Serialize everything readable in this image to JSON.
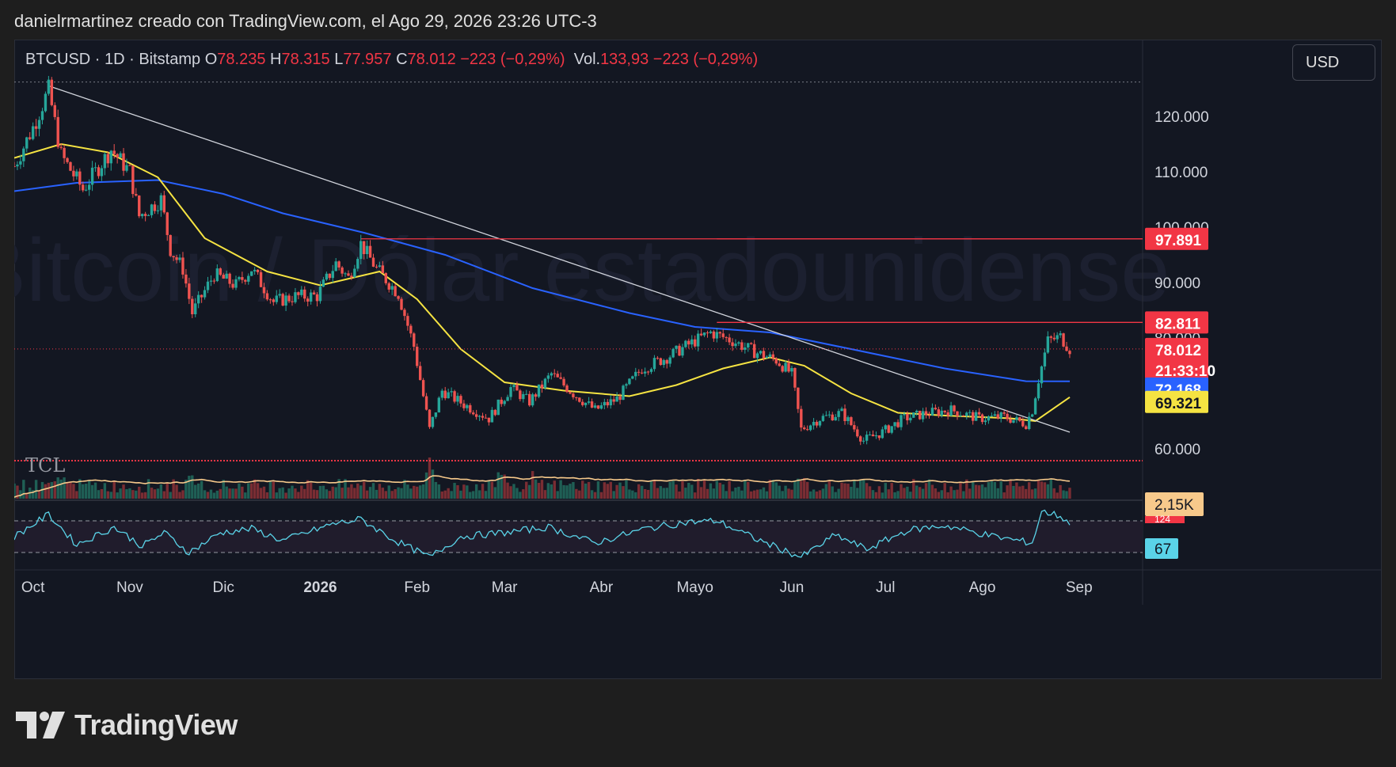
{
  "header": {
    "author_line": "danielrmartinez creado con TradingView.com, el Ago 29, 2026 23:26 UTC-3"
  },
  "legend": {
    "symbol": "BTCUSD · 1D · Bitstamp",
    "open_label": "O",
    "open": "78.235",
    "high_label": "H",
    "high": "78.315",
    "low_label": "L",
    "low": "77.957",
    "close_label": "C",
    "close": "78.012",
    "change": "−223 (−0,29%)",
    "vol_label": "Vol.",
    "vol": "133,93",
    "vol_change": "−223 (−0,29%)"
  },
  "currency_button": "USD",
  "watermark": "Bitcoin / Dólar estadounidense",
  "tcl_logo": "TCL",
  "brand": "TradingView",
  "colors": {
    "up": "#26a69a",
    "down": "#ef5350",
    "sma_short": "#f5e342",
    "sma_long": "#2962ff",
    "resistance": "#f23645",
    "rsi": "#5ad3e8",
    "volume_ma": "#f7c98b"
  },
  "chart_data": {
    "type": "candlestick",
    "x_labels": [
      "Oct",
      "Nov",
      "Dic",
      "2026",
      "Feb",
      "Mar",
      "Abr",
      "Mayo",
      "Jun",
      "Jul",
      "Ago",
      "Sep"
    ],
    "y_ticks": [
      60000,
      70000,
      80000,
      90000,
      100000,
      110000,
      120000
    ],
    "y_tick_labels": [
      "60.000",
      "70.000",
      "80.000",
      "90.000",
      "100.000",
      "110.000",
      "120.000"
    ],
    "ylim": [
      56000,
      128000
    ],
    "close_path": [
      [
        "2025-09-25",
        111000
      ],
      [
        "2025-10-01",
        118000
      ],
      [
        "2025-10-06",
        124800
      ],
      [
        "2025-10-10",
        113000
      ],
      [
        "2025-10-17",
        106800
      ],
      [
        "2025-10-26",
        114000
      ],
      [
        "2025-11-01",
        110000
      ],
      [
        "2025-11-04",
        102000
      ],
      [
        "2025-11-11",
        105000
      ],
      [
        "2025-11-14",
        96000
      ],
      [
        "2025-11-18",
        92500
      ],
      [
        "2025-11-21",
        84500
      ],
      [
        "2025-11-28",
        91500
      ],
      [
        "2025-12-05",
        89500
      ],
      [
        "2025-12-10",
        92500
      ],
      [
        "2025-12-17",
        86500
      ],
      [
        "2025-12-24",
        87500
      ],
      [
        "2025-12-31",
        87600
      ],
      [
        "2026-01-06",
        93500
      ],
      [
        "2026-01-10",
        90800
      ],
      [
        "2026-01-14",
        97000
      ],
      [
        "2026-01-19",
        92500
      ],
      [
        "2026-01-26",
        88000
      ],
      [
        "2026-01-31",
        78500
      ],
      [
        "2026-02-05",
        63500
      ],
      [
        "2026-02-09",
        70500
      ],
      [
        "2026-02-16",
        68000
      ],
      [
        "2026-02-24",
        65500
      ],
      [
        "2026-03-03",
        71000
      ],
      [
        "2026-03-09",
        68500
      ],
      [
        "2026-03-16",
        73500
      ],
      [
        "2026-03-23",
        70000
      ],
      [
        "2026-03-30",
        67000
      ],
      [
        "2026-04-06",
        69000
      ],
      [
        "2026-04-14",
        74500
      ],
      [
        "2026-04-22",
        76500
      ],
      [
        "2026-04-28",
        78500
      ],
      [
        "2026-05-06",
        81000
      ],
      [
        "2026-05-13",
        79500
      ],
      [
        "2026-05-20",
        77500
      ],
      [
        "2026-05-27",
        76000
      ],
      [
        "2026-06-01",
        73500
      ],
      [
        "2026-06-04",
        63500
      ],
      [
        "2026-06-10",
        65500
      ],
      [
        "2026-06-17",
        66500
      ],
      [
        "2026-06-24",
        61500
      ],
      [
        "2026-06-30",
        63000
      ],
      [
        "2026-07-07",
        65500
      ],
      [
        "2026-07-15",
        66500
      ],
      [
        "2026-07-22",
        67000
      ],
      [
        "2026-07-31",
        65500
      ],
      [
        "2026-08-08",
        65800
      ],
      [
        "2026-08-15",
        64500
      ],
      [
        "2026-08-17",
        67000
      ],
      [
        "2026-08-19",
        72500
      ],
      [
        "2026-08-22",
        79500
      ],
      [
        "2026-08-26",
        80200
      ],
      [
        "2026-08-29",
        78012
      ]
    ],
    "sma_short": [
      [
        "2025-09-25",
        112500
      ],
      [
        "2025-10-10",
        115000
      ],
      [
        "2025-10-25",
        113500
      ],
      [
        "2025-11-10",
        109000
      ],
      [
        "2025-11-25",
        98000
      ],
      [
        "2025-12-15",
        92000
      ],
      [
        "2026-01-01",
        89500
      ],
      [
        "2026-01-20",
        92000
      ],
      [
        "2026-02-01",
        87000
      ],
      [
        "2026-02-15",
        78000
      ],
      [
        "2026-03-01",
        72000
      ],
      [
        "2026-03-20",
        70500
      ],
      [
        "2026-04-10",
        69500
      ],
      [
        "2026-04-25",
        71500
      ],
      [
        "2026-05-10",
        74500
      ],
      [
        "2026-05-25",
        76500
      ],
      [
        "2026-06-05",
        75000
      ],
      [
        "2026-06-20",
        70000
      ],
      [
        "2026-07-05",
        66500
      ],
      [
        "2026-07-20",
        66000
      ],
      [
        "2026-08-10",
        65500
      ],
      [
        "2026-08-18",
        65000
      ],
      [
        "2026-08-29",
        69321
      ]
    ],
    "sma_long": [
      [
        "2025-09-25",
        106500
      ],
      [
        "2025-10-15",
        108000
      ],
      [
        "2025-11-10",
        108500
      ],
      [
        "2025-12-01",
        106000
      ],
      [
        "2025-12-20",
        102500
      ],
      [
        "2026-01-15",
        99000
      ],
      [
        "2026-02-10",
        95000
      ],
      [
        "2026-03-10",
        89000
      ],
      [
        "2026-04-10",
        84500
      ],
      [
        "2026-05-01",
        82000
      ],
      [
        "2026-05-25",
        81000
      ],
      [
        "2026-06-20",
        78000
      ],
      [
        "2026-07-20",
        74500
      ],
      [
        "2026-08-15",
        72200
      ],
      [
        "2026-08-29",
        72168
      ]
    ],
    "trendline": [
      [
        "2025-10-06",
        125500
      ],
      [
        "2026-08-29",
        63000
      ]
    ],
    "horizontal_levels": [
      {
        "value": 97891,
        "label": "97.891"
      },
      {
        "value": 82811,
        "label": "82.811"
      }
    ],
    "top_dotted_level": 126200,
    "current_price": {
      "value": 78012,
      "label": "78.012",
      "countdown": "21:33:10"
    },
    "sma_long_last": {
      "value": 72168,
      "label": "72.168"
    },
    "sma_short_last": {
      "value": 69321,
      "label": "69.321"
    },
    "volume": {
      "last_label": "2,15K",
      "cut_label": "124",
      "peaks": [
        [
          "2025-10-10",
          0.75
        ],
        [
          "2025-11-21",
          0.7
        ],
        [
          "2026-02-05",
          0.95
        ],
        [
          "2026-02-28",
          0.85
        ],
        [
          "2026-03-10",
          0.7
        ],
        [
          "2026-06-04",
          0.7
        ],
        [
          "2026-08-20",
          0.65
        ]
      ]
    },
    "rsi": {
      "last_label": "67",
      "upper": 70,
      "lower": 30,
      "points": [
        [
          "2025-09-25",
          50
        ],
        [
          "2025-10-06",
          78
        ],
        [
          "2025-10-15",
          40
        ],
        [
          "2025-10-27",
          62
        ],
        [
          "2025-11-05",
          38
        ],
        [
          "2025-11-12",
          55
        ],
        [
          "2025-11-20",
          30
        ],
        [
          "2025-11-30",
          55
        ],
        [
          "2025-12-10",
          60
        ],
        [
          "2025-12-20",
          45
        ],
        [
          "2026-01-05",
          66
        ],
        [
          "2026-01-14",
          72
        ],
        [
          "2026-01-25",
          45
        ],
        [
          "2026-02-05",
          24
        ],
        [
          "2026-02-15",
          50
        ],
        [
          "2026-03-01",
          55
        ],
        [
          "2026-03-15",
          62
        ],
        [
          "2026-03-30",
          42
        ],
        [
          "2026-04-15",
          60
        ],
        [
          "2026-04-28",
          68
        ],
        [
          "2026-05-08",
          70
        ],
        [
          "2026-05-20",
          48
        ],
        [
          "2026-06-04",
          24
        ],
        [
          "2026-06-15",
          52
        ],
        [
          "2026-06-25",
          34
        ],
        [
          "2026-07-08",
          58
        ],
        [
          "2026-07-20",
          64
        ],
        [
          "2026-08-05",
          50
        ],
        [
          "2026-08-17",
          42
        ],
        [
          "2026-08-20",
          82
        ],
        [
          "2026-08-26",
          76
        ],
        [
          "2026-08-29",
          67
        ]
      ]
    }
  }
}
